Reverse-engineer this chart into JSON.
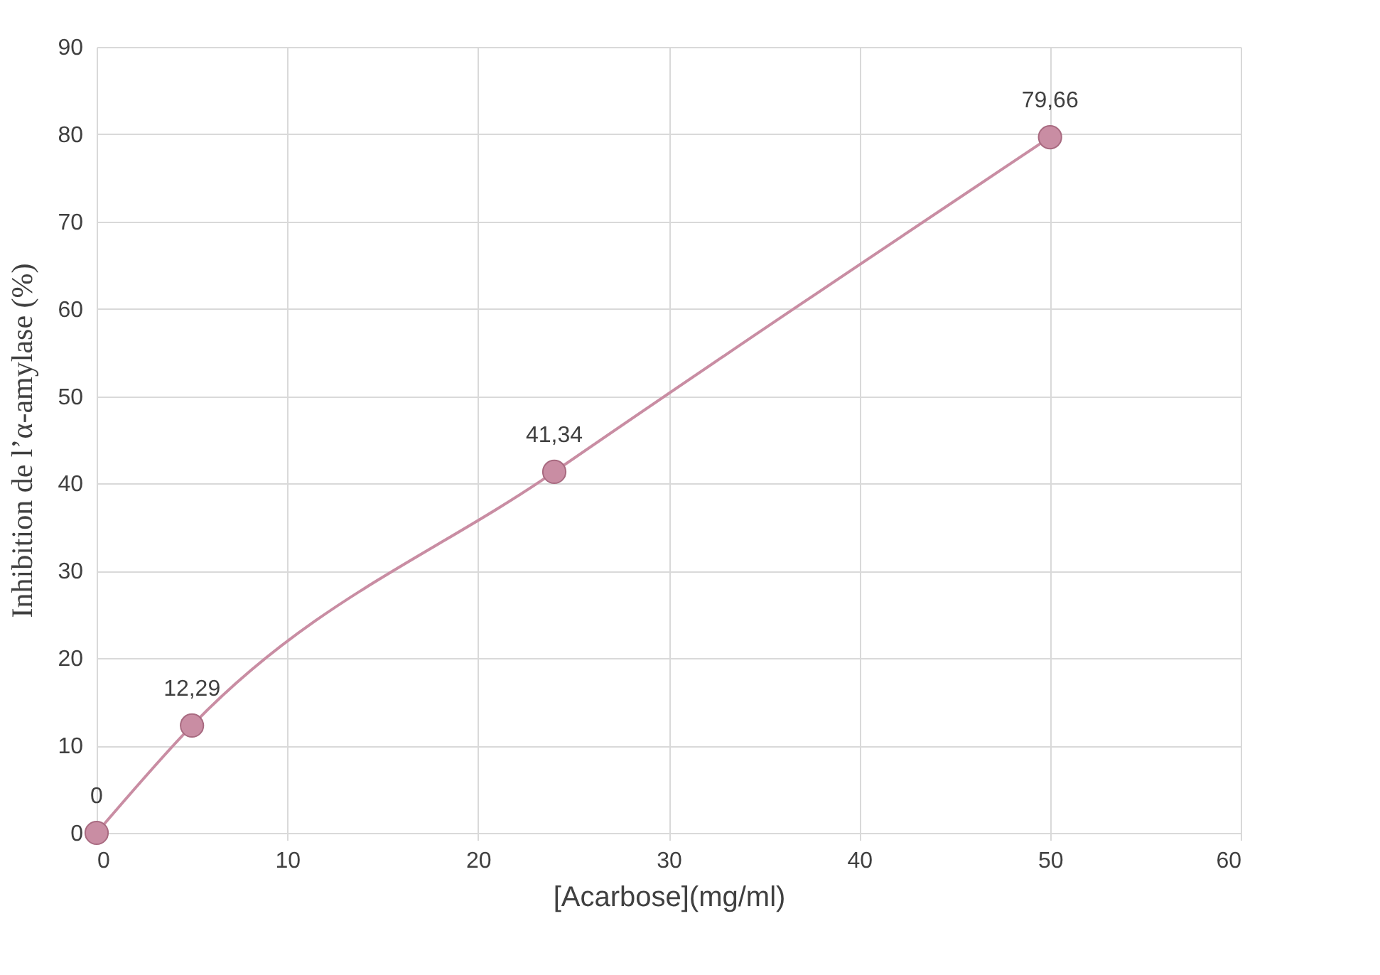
{
  "chart_data": {
    "type": "line",
    "xlabel": "[Acarbose](mg/ml)",
    "ylabel": "Inhibition de l’α-amylase (%)",
    "x": [
      0,
      5,
      24,
      50
    ],
    "series": [
      {
        "color": "#c98da3",
        "values": [
          0,
          12.29,
          41.34,
          79.66
        ],
        "value_labels": [
          "0",
          "12,29",
          "41,34",
          "79,66"
        ]
      }
    ],
    "xlim": [
      0,
      60
    ],
    "xticks": [
      0,
      10,
      20,
      30,
      40,
      50,
      60
    ],
    "ylim": [
      0,
      90
    ],
    "yticks": [
      0,
      10,
      20,
      30,
      40,
      50,
      60,
      70,
      80,
      90
    ],
    "grid": true,
    "marker": "circle",
    "line_style": "solid"
  }
}
